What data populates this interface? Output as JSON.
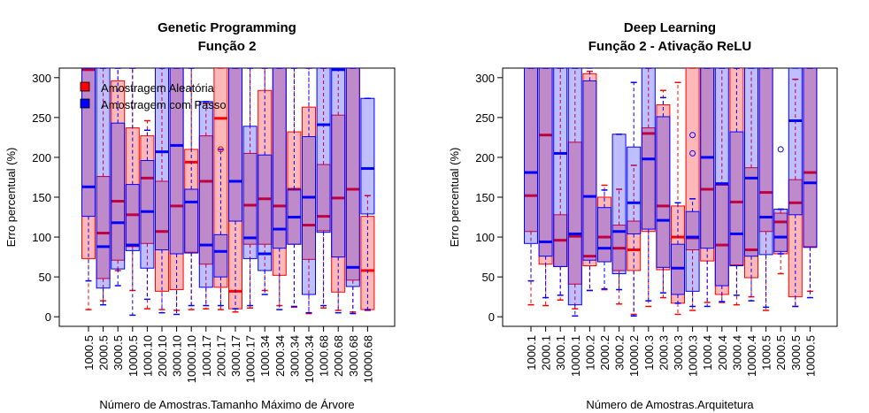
{
  "chart_data": [
    {
      "type": "box",
      "title": [
        "Genetic Programming",
        "Função 2"
      ],
      "xlabel": "Número de Amostras.Tamanho Máximo de Árvore",
      "ylabel": "Erro percentual (%)",
      "ylim": [
        -12,
        312
      ],
      "yticks": [
        0,
        50,
        100,
        150,
        200,
        250,
        300
      ],
      "legend": {
        "position": "top-left",
        "entries": [
          {
            "label": "Amostragem Aleatória",
            "color": "#ff0000"
          },
          {
            "label": "Amostragem com Passo",
            "color": "#0000ff"
          }
        ]
      },
      "categories": [
        "1000.5",
        "2000.5",
        "3000.5",
        "10000.5",
        "1000.10",
        "2000.10",
        "3000.10",
        "10000.10",
        "1000.17",
        "2000.17",
        "3000.17",
        "10000.17",
        "1000.34",
        "2000.34",
        "3000.34",
        "10000.34",
        "1000.68",
        "2000.68",
        "3000.68",
        "10000.68"
      ],
      "series": [
        {
          "name": "Amostragem Aleatória",
          "color": "#ff0000",
          "boxes": [
            {
              "q1": 73,
              "med": 310,
              "q3": 312,
              "wlo": 9,
              "whi": 312
            },
            {
              "q1": 48,
              "med": 105,
              "q3": 176,
              "wlo": 20,
              "whi": 312
            },
            {
              "q1": 71,
              "med": 145,
              "q3": 296,
              "wlo": 58,
              "whi": 312
            },
            {
              "q1": 88,
              "med": 128,
              "q3": 237,
              "wlo": 33,
              "whi": 312
            },
            {
              "q1": 92,
              "med": 174,
              "q3": 227,
              "wlo": 10,
              "whi": 246
            },
            {
              "q1": 32,
              "med": 107,
              "q3": 170,
              "wlo": 9,
              "whi": 312
            },
            {
              "q1": 34,
              "med": 139,
              "q3": 312,
              "wlo": 8,
              "whi": 312
            },
            {
              "q1": 81,
              "med": 194,
              "q3": 210,
              "wlo": 9,
              "whi": 312
            },
            {
              "q1": 66,
              "med": 170,
              "q3": 227,
              "wlo": 10,
              "whi": 268
            },
            {
              "q1": 37,
              "med": 249,
              "q3": 312,
              "wlo": 9,
              "whi": 312
            },
            {
              "q1": 10,
              "med": 32,
              "q3": 312,
              "wlo": 6,
              "whi": 312
            },
            {
              "q1": 91,
              "med": 140,
              "q3": 205,
              "wlo": 11,
              "whi": 312
            },
            {
              "q1": 91,
              "med": 148,
              "q3": 284,
              "wlo": 33,
              "whi": 312
            },
            {
              "q1": 52,
              "med": 139,
              "q3": 312,
              "wlo": 14,
              "whi": 312
            },
            {
              "q1": 91,
              "med": 160,
              "q3": 232,
              "wlo": 12,
              "whi": 312
            },
            {
              "q1": 72,
              "med": 115,
              "q3": 263,
              "wlo": 4,
              "whi": 312
            },
            {
              "q1": 108,
              "med": 126,
              "q3": 191,
              "wlo": 11,
              "whi": 312
            },
            {
              "q1": 31,
              "med": 149,
              "q3": 253,
              "wlo": 8,
              "whi": 312
            },
            {
              "q1": 46,
              "med": 160,
              "q3": 312,
              "wlo": 6,
              "whi": 312
            },
            {
              "q1": 9,
              "med": 58,
              "q3": 126,
              "wlo": 8,
              "whi": 152
            }
          ]
        },
        {
          "name": "Amostragem com Passo",
          "color": "#0000ff",
          "boxes": [
            {
              "q1": 126,
              "med": 163,
              "q3": 312,
              "wlo": 45,
              "whi": 312
            },
            {
              "q1": 36,
              "med": 88,
              "q3": 312,
              "wlo": 15,
              "whi": 312
            },
            {
              "q1": 60,
              "med": 118,
              "q3": 243,
              "wlo": 39,
              "whi": 312
            },
            {
              "q1": 83,
              "med": 90,
              "q3": 166,
              "wlo": 2,
              "whi": 312
            },
            {
              "q1": 61,
              "med": 132,
              "q3": 196,
              "wlo": 22,
              "whi": 234
            },
            {
              "q1": 84,
              "med": 207,
              "q3": 312,
              "wlo": 5,
              "whi": 312
            },
            {
              "q1": 79,
              "med": 215,
              "q3": 312,
              "wlo": 3,
              "whi": 312
            },
            {
              "q1": 80,
              "med": 144,
              "q3": 160,
              "wlo": 14,
              "whi": 312
            },
            {
              "q1": 37,
              "med": 90,
              "q3": 270,
              "wlo": 14,
              "whi": 270
            },
            {
              "q1": 50,
              "med": 82,
              "q3": 103,
              "wlo": 14,
              "whi": 210
            },
            {
              "q1": 120,
              "med": 170,
              "q3": 312,
              "wlo": 10,
              "whi": 312
            },
            {
              "q1": 73,
              "med": 99,
              "q3": 239,
              "wlo": 14,
              "whi": 312
            },
            {
              "q1": 58,
              "med": 79,
              "q3": 203,
              "wlo": 28,
              "whi": 312
            },
            {
              "q1": 86,
              "med": 110,
              "q3": 312,
              "wlo": 9,
              "whi": 312
            },
            {
              "q1": 91,
              "med": 125,
              "q3": 160,
              "wlo": 13,
              "whi": 312
            },
            {
              "q1": 28,
              "med": 150,
              "q3": 226,
              "wlo": 5,
              "whi": 312
            },
            {
              "q1": 106,
              "med": 241,
              "q3": 312,
              "wlo": 14,
              "whi": 312
            },
            {
              "q1": 75,
              "med": 310,
              "q3": 312,
              "wlo": 5,
              "whi": 312
            },
            {
              "q1": 38,
              "med": 62,
              "q3": 312,
              "wlo": 4,
              "whi": 312
            },
            {
              "q1": 129,
              "med": 186,
              "q3": 274,
              "wlo": 9,
              "whi": 274
            }
          ]
        }
      ],
      "outliers": [
        {
          "series": 0,
          "index": 9,
          "value": 210
        }
      ]
    },
    {
      "type": "box",
      "title": [
        "Deep Learning",
        "Função 2  - Ativação ReLU"
      ],
      "xlabel": "Número de Amostras.Arquitetura",
      "ylabel": "Erro percentual (%)",
      "ylim": [
        -12,
        312
      ],
      "yticks": [
        0,
        50,
        100,
        150,
        200,
        250,
        300
      ],
      "categories": [
        "1000.1",
        "2000.1",
        "3000.1",
        "10000.1",
        "1000.2",
        "2000.2",
        "3000.2",
        "10000.2",
        "1000.3",
        "2000.3",
        "3000.3",
        "10000.3",
        "1000.4",
        "2000.4",
        "3000.4",
        "10000.4",
        "1000.5",
        "2000.5",
        "3000.5",
        "10000.5"
      ],
      "series": [
        {
          "name": "Amostragem Aleatória",
          "color": "#ff0000",
          "boxes": [
            {
              "q1": 107,
              "med": 152,
              "q3": 312,
              "wlo": 15,
              "whi": 312
            },
            {
              "q1": 66,
              "med": 228,
              "q3": 312,
              "wlo": 14,
              "whi": 312
            },
            {
              "q1": 63,
              "med": 96,
              "q3": 128,
              "wlo": 21,
              "whi": 312
            },
            {
              "q1": 41,
              "med": 101,
              "q3": 219,
              "wlo": 10,
              "whi": 312
            },
            {
              "q1": 64,
              "med": 76,
              "q3": 305,
              "wlo": 33,
              "whi": 308
            },
            {
              "q1": 69,
              "med": 100,
              "q3": 150,
              "wlo": 34,
              "whi": 165
            },
            {
              "q1": 58,
              "med": 86,
              "q3": 115,
              "wlo": 16,
              "whi": 160
            },
            {
              "q1": 58,
              "med": 84,
              "q3": 120,
              "wlo": 3,
              "whi": 190
            },
            {
              "q1": 107,
              "med": 230,
              "q3": 237,
              "wlo": 13,
              "whi": 312
            },
            {
              "q1": 59,
              "med": 139,
              "q3": 266,
              "wlo": 24,
              "whi": 284
            },
            {
              "q1": 17,
              "med": 100,
              "q3": 139,
              "wlo": 3,
              "whi": 294
            },
            {
              "q1": 84,
              "med": 99,
              "q3": 312,
              "wlo": 8,
              "whi": 312
            },
            {
              "q1": 70,
              "med": 160,
              "q3": 312,
              "wlo": 18,
              "whi": 312
            },
            {
              "q1": 28,
              "med": 90,
              "q3": 165,
              "wlo": 18,
              "whi": 312
            },
            {
              "q1": 65,
              "med": 144,
              "q3": 312,
              "wlo": 15,
              "whi": 312
            },
            {
              "q1": 49,
              "med": 84,
              "q3": 187,
              "wlo": 25,
              "whi": 312
            },
            {
              "q1": 107,
              "med": 156,
              "q3": 312,
              "wlo": 8,
              "whi": 312
            },
            {
              "q1": 79,
              "med": 119,
              "q3": 130,
              "wlo": 54,
              "whi": 135
            },
            {
              "q1": 25,
              "med": 143,
              "q3": 172,
              "wlo": 13,
              "whi": 298
            },
            {
              "q1": 88,
              "med": 181,
              "q3": 312,
              "wlo": 32,
              "whi": 312
            }
          ]
        },
        {
          "name": "Amostragem com Passo",
          "color": "#0000ff",
          "boxes": [
            {
              "q1": 92,
              "med": 181,
              "q3": 312,
              "wlo": 45,
              "whi": 312
            },
            {
              "q1": 76,
              "med": 94,
              "q3": 312,
              "wlo": 24,
              "whi": 312
            },
            {
              "q1": 63,
              "med": 205,
              "q3": 312,
              "wlo": 27,
              "whi": 312
            },
            {
              "q1": 15,
              "med": 104,
              "q3": 312,
              "wlo": 1,
              "whi": 312
            },
            {
              "q1": 71,
              "med": 151,
              "q3": 296,
              "wlo": 33,
              "whi": 312
            },
            {
              "q1": 69,
              "med": 86,
              "q3": 137,
              "wlo": 35,
              "whi": 159
            },
            {
              "q1": 54,
              "med": 107,
              "q3": 229,
              "wlo": 34,
              "whi": 229
            },
            {
              "q1": 104,
              "med": 143,
              "q3": 213,
              "wlo": 1,
              "whi": 294
            },
            {
              "q1": 110,
              "med": 198,
              "q3": 312,
              "wlo": 20,
              "whi": 312
            },
            {
              "q1": 62,
              "med": 121,
              "q3": 251,
              "wlo": 30,
              "whi": 275
            },
            {
              "q1": 28,
              "med": 61,
              "q3": 91,
              "wlo": 17,
              "whi": 143
            },
            {
              "q1": 32,
              "med": 100,
              "q3": 132,
              "wlo": 13,
              "whi": 148
            },
            {
              "q1": 86,
              "med": 200,
              "q3": 312,
              "wlo": 13,
              "whi": 312
            },
            {
              "q1": 39,
              "med": 167,
              "q3": 312,
              "wlo": 19,
              "whi": 312
            },
            {
              "q1": 64,
              "med": 104,
              "q3": 232,
              "wlo": 27,
              "whi": 312
            },
            {
              "q1": 76,
              "med": 174,
              "q3": 312,
              "wlo": 20,
              "whi": 312
            },
            {
              "q1": 78,
              "med": 125,
              "q3": 312,
              "wlo": 12,
              "whi": 312
            },
            {
              "q1": 82,
              "med": 100,
              "q3": 135,
              "wlo": 79,
              "whi": 135
            },
            {
              "q1": 128,
              "med": 246,
              "q3": 312,
              "wlo": 13,
              "whi": 312
            },
            {
              "q1": 87,
              "med": 168,
              "q3": 312,
              "wlo": 24,
              "whi": 312
            }
          ]
        }
      ],
      "outliers": [
        {
          "series": 1,
          "index": 11,
          "value": 228
        },
        {
          "series": 1,
          "index": 11,
          "value": 205
        },
        {
          "series": 1,
          "index": 17,
          "value": 210
        }
      ]
    }
  ]
}
